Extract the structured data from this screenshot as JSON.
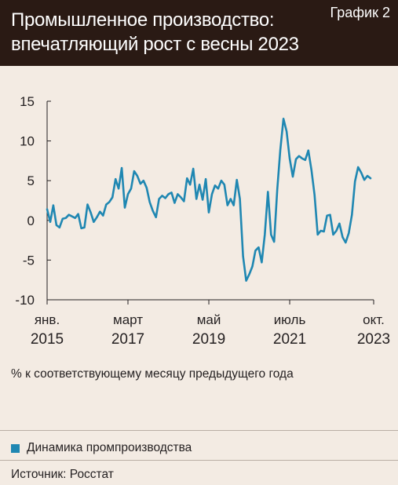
{
  "header": {
    "title": "Промышленное производство: впечатляющий рост с весны 2023",
    "chart_label": "График 2"
  },
  "unit_note": "% к соответствующему месяцу предыдущего года",
  "legend": {
    "label": "Динамика промпроизводства"
  },
  "source": "Источник: Росстат",
  "colors": {
    "series": "#1f87b2",
    "header_bg": "#2a1a14",
    "background": "#f3ebe3"
  },
  "chart_data": {
    "type": "line",
    "title": "Промышленное производство: впечатляющий рост с весны 2023",
    "ylabel": "% к соответствующему месяцу предыдущего года",
    "ylim": [
      -10,
      15
    ],
    "yticks": [
      "15",
      "10",
      "5",
      "0",
      "-5",
      "-10"
    ],
    "xlim": [
      "2015-01",
      "2023-10"
    ],
    "xticks": [
      {
        "month": "янв.",
        "year": "2015"
      },
      {
        "month": "март",
        "year": "2017"
      },
      {
        "month": "май",
        "year": "2019"
      },
      {
        "month": "июль",
        "year": "2021"
      },
      {
        "month": "окт.",
        "year": "2023"
      }
    ],
    "grid": false,
    "legend_position": "bottom",
    "series": [
      {
        "name": "Динамика промпроизводства",
        "start": "2015-01",
        "frequency": "monthly",
        "values": [
          1.4,
          -0.2,
          1.9,
          -0.6,
          -0.9,
          0.2,
          0.3,
          0.7,
          0.5,
          0.3,
          0.8,
          -1.0,
          -0.9,
          2.0,
          1.0,
          -0.2,
          0.4,
          1.1,
          0.6,
          2.0,
          2.3,
          2.9,
          5.2,
          4.0,
          6.6,
          1.6,
          3.3,
          4.0,
          6.2,
          5.6,
          4.6,
          5.0,
          4.1,
          2.3,
          1.2,
          0.4,
          2.7,
          3.1,
          2.8,
          3.3,
          3.5,
          2.2,
          3.3,
          2.9,
          2.4,
          5.3,
          4.5,
          6.5,
          2.7,
          4.5,
          2.6,
          5.2,
          1.0,
          3.3,
          4.4,
          4.0,
          5.0,
          4.5,
          1.9,
          2.7,
          1.9,
          5.1,
          2.7,
          -4.5,
          -7.6,
          -6.8,
          -5.8,
          -3.8,
          -3.4,
          -5.3,
          -1.8,
          3.6,
          -1.8,
          -2.7,
          3.9,
          8.9,
          12.8,
          11.2,
          7.8,
          5.5,
          7.7,
          8.1,
          7.8,
          7.6,
          8.8,
          6.3,
          3.2,
          -1.8,
          -1.3,
          -1.4,
          0.6,
          0.7,
          -1.8,
          -1.3,
          -0.4,
          -2.1,
          -2.8,
          -1.6,
          0.7,
          4.9,
          6.7,
          6.0,
          5.1,
          5.6,
          5.3
        ]
      }
    ]
  }
}
